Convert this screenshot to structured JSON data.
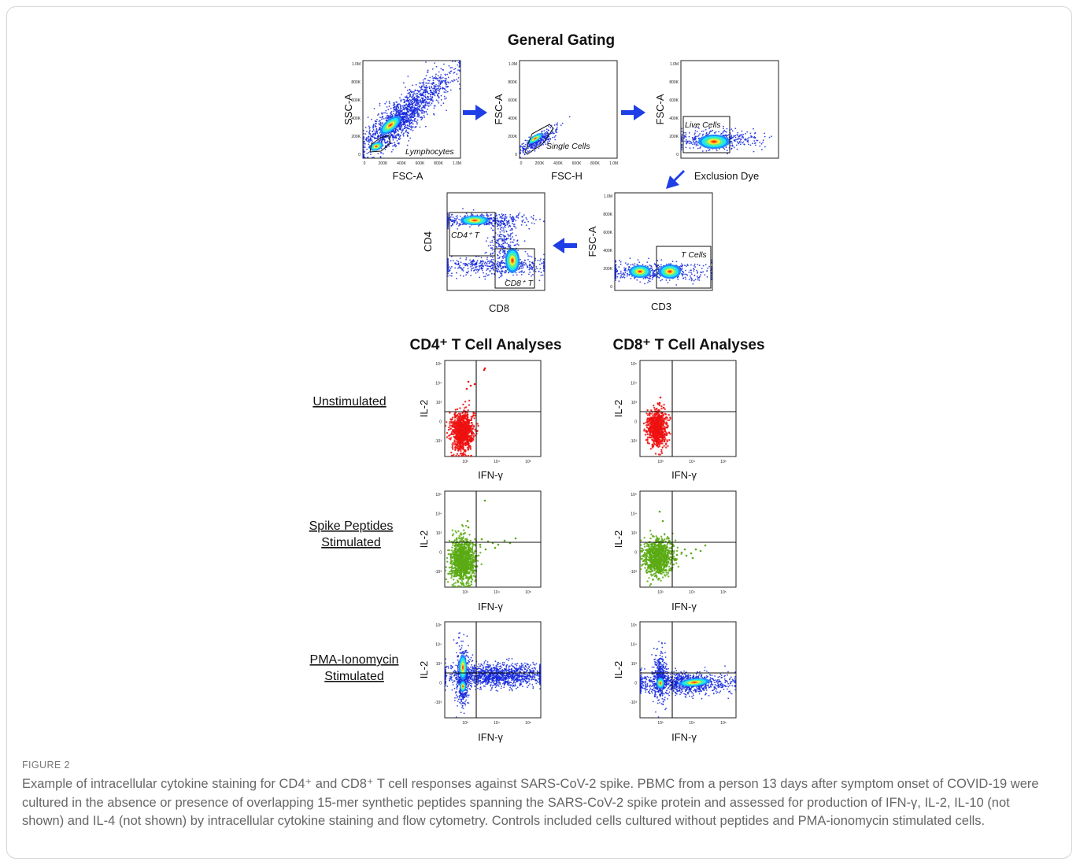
{
  "figure": {
    "label": "FIGURE 2",
    "caption": "Example of intracellular cytokine staining for CD4⁺ and CD8⁺ T cell responses against SARS-CoV-2 spike. PBMC from a person 13 days after symptom onset of COVID-19 were cultured in the absence or presence of overlapping 15-mer synthetic peptides spanning the SARS-CoV-2 spike protein and assessed for production of IFN-γ, IL-2, IL-10 (not shown) and IL-4 (not shown) by intracellular cytokine staining and flow cytometry. Controls included cells cultured without peptides and PMA-ionomycin stimulated cells."
  },
  "general_gating": {
    "title": "General Gating",
    "plots": [
      {
        "xlabel": "FSC-A",
        "ylabel": "SSC-A",
        "gate": "Lymphocytes"
      },
      {
        "xlabel": "FSC-H",
        "ylabel": "FSC-A",
        "gate": "Single Cells"
      },
      {
        "xlabel": "Exclusion Dye",
        "ylabel": "FSC-A",
        "gate": "Live Cells"
      },
      {
        "xlabel": "CD3",
        "ylabel": "FSC-A",
        "gate": "T Cells"
      },
      {
        "xlabel": "CD8",
        "ylabel": "CD4",
        "gate_cd4": "CD4⁺ T",
        "gate_cd8": "CD8⁺ T"
      }
    ],
    "linear_ticks": [
      "1.0M",
      "800K",
      "600K",
      "400K",
      "200K",
      "0"
    ],
    "linear_xticks": [
      "0",
      "200K",
      "400K",
      "600K",
      "800K",
      "1.0M"
    ]
  },
  "analyses": {
    "cd4_title": "CD4⁺ T Cell Analyses",
    "cd8_title": "CD8⁺ T Cell Analyses",
    "xlabel": "IFN-γ",
    "ylabel": "IL-2",
    "conditions": [
      {
        "label_lines": [
          "Unstimulated"
        ]
      },
      {
        "label_lines": [
          "Spike Peptides",
          "Stimulated"
        ]
      },
      {
        "label_lines": [
          "PMA-Ionomycin",
          "Stimulated"
        ]
      }
    ],
    "log_yticks": [
      "10⁵",
      "10⁴",
      "10³",
      "0",
      "-10³"
    ],
    "log_xticks": [
      "10³",
      "10⁴",
      "10⁵"
    ]
  },
  "colors": {
    "arrow": "#1f3fe6",
    "unstimulated": "#ee1111",
    "spike": "#5aaa14",
    "density_low": "#1428dc",
    "density_high": "#ff3300"
  }
}
